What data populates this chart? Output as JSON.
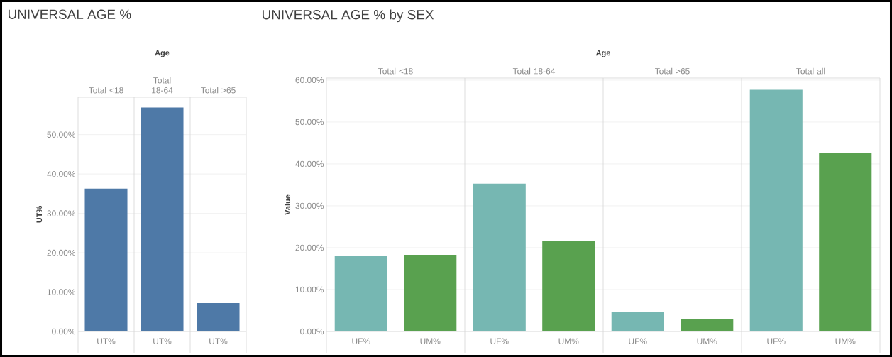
{
  "chart_data": [
    {
      "type": "bar",
      "title": "UNIVERSAL AGE %",
      "xlabel": "Age",
      "ylabel": "UT%",
      "categories": [
        "Total <18",
        "Total 18-64",
        "Total >65"
      ],
      "series": [
        {
          "name": "UT%",
          "color": "#4e79a7",
          "values": [
            36.3,
            56.9,
            7.2
          ]
        }
      ],
      "ylim": [
        0,
        59.5
      ],
      "yticks": [
        {
          "value": 0,
          "label": "0.00%"
        },
        {
          "value": 10,
          "label": "10.00%"
        },
        {
          "value": 20,
          "label": "20.00%"
        },
        {
          "value": 30,
          "label": "30.00%"
        },
        {
          "value": 40,
          "label": "40.00%"
        },
        {
          "value": 50,
          "label": "50.00%"
        }
      ],
      "grid": "y"
    },
    {
      "type": "bar",
      "title": "UNIVERSAL AGE % by SEX",
      "xlabel": "Age",
      "ylabel": "Value",
      "categories": [
        "Total <18",
        "Total 18-64",
        "Total >65",
        "Total all"
      ],
      "series": [
        {
          "name": "UF%",
          "color": "#76b7b2",
          "values": [
            18.0,
            35.3,
            4.6,
            57.7
          ]
        },
        {
          "name": "UM%",
          "color": "#59a14f",
          "values": [
            18.3,
            21.6,
            2.9,
            42.6
          ]
        }
      ],
      "ylim": [
        0,
        60.5
      ],
      "yticks": [
        {
          "value": 0,
          "label": "0.00%"
        },
        {
          "value": 10,
          "label": "10.00%"
        },
        {
          "value": 20,
          "label": "20.00%"
        },
        {
          "value": 30,
          "label": "30.00%"
        },
        {
          "value": 40,
          "label": "40.00%"
        },
        {
          "value": 50,
          "label": "50.00%"
        },
        {
          "value": 60,
          "label": "60.00%"
        }
      ],
      "grid": "y"
    }
  ]
}
